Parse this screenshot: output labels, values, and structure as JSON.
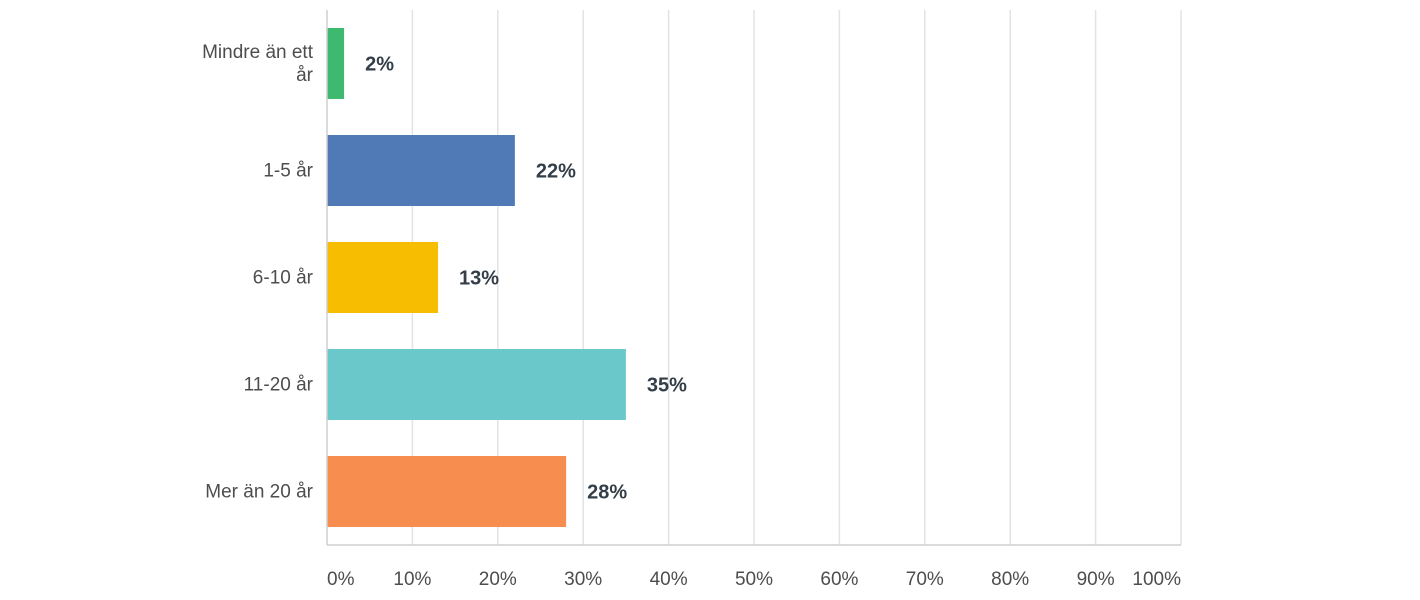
{
  "chart_data": {
    "type": "bar",
    "orientation": "horizontal",
    "categories": [
      [
        "Mindre än ett",
        "år"
      ],
      [
        "1-5 år"
      ],
      [
        "6-10 år"
      ],
      [
        "11-20 år"
      ],
      [
        "Mer än 20 år"
      ]
    ],
    "values": [
      2,
      22,
      13,
      35,
      28
    ],
    "value_labels": [
      "2%",
      "22%",
      "13%",
      "35%",
      "28%"
    ],
    "colors": [
      "#3dba6f",
      "#4f7ab5",
      "#f7bd00",
      "#6ac8ca",
      "#f78e50"
    ],
    "xlim": [
      0,
      100
    ],
    "x_ticks": [
      {
        "value": 0,
        "label": "0%"
      },
      {
        "value": 10,
        "label": "10%"
      },
      {
        "value": 20,
        "label": "20%"
      },
      {
        "value": 30,
        "label": "30%"
      },
      {
        "value": 40,
        "label": "40%"
      },
      {
        "value": 50,
        "label": "50%"
      },
      {
        "value": 60,
        "label": "60%"
      },
      {
        "value": 70,
        "label": "70%"
      },
      {
        "value": 80,
        "label": "80%"
      },
      {
        "value": 90,
        "label": "90%"
      },
      {
        "value": 100,
        "label": "100%"
      }
    ],
    "grid": true,
    "title": "",
    "xlabel": "",
    "ylabel": ""
  }
}
